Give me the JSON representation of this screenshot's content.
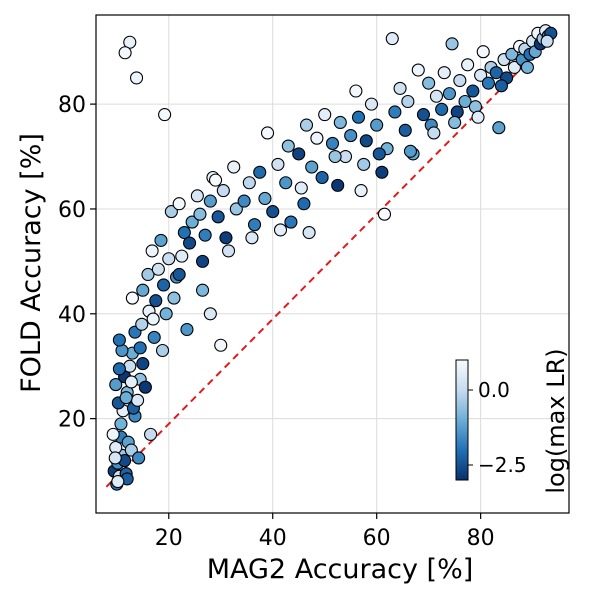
{
  "chart_data": {
    "type": "scatter",
    "title": "",
    "xlabel": "MAG2 Accuracy [%]",
    "ylabel": "FOLD Accuracy [%]",
    "xlim": [
      6,
      97
    ],
    "ylim": [
      2,
      97
    ],
    "xticks": [
      20,
      40,
      60,
      80
    ],
    "yticks": [
      20,
      40,
      60,
      80
    ],
    "x_tick_labels": [
      "20",
      "40",
      "60",
      "80"
    ],
    "y_tick_labels": [
      "20",
      "40",
      "60",
      "80"
    ],
    "grid": true,
    "reference_line": {
      "x": [
        8,
        94
      ],
      "y": [
        7,
        93
      ],
      "style": "dashed",
      "color": "#e31a1c"
    },
    "colorbar": {
      "label": "log(max LR)",
      "colormap": "Blues_r",
      "range": [
        -3,
        1
      ],
      "ticks": [
        0.0,
        -2.5
      ],
      "tick_labels": [
        "0.0",
        "−2.5"
      ]
    },
    "colors": {
      "low": "#08306b",
      "high": "#f7fbff",
      "reference_line": "#e31a1c",
      "marker_edge": "#000000"
    },
    "points": [
      [
        12.5,
        91.8,
        0.7
      ],
      [
        11.6,
        89.8,
        0.9
      ],
      [
        13.8,
        85.0,
        0.8
      ],
      [
        19.2,
        78.0,
        0.9
      ],
      [
        9.5,
        10.0,
        -2.8
      ],
      [
        10.2,
        11.5,
        -1.5
      ],
      [
        11.0,
        13.0,
        -0.5
      ],
      [
        9.8,
        14.5,
        0.5
      ],
      [
        10.5,
        9.0,
        0.2
      ],
      [
        11.8,
        9.5,
        -2.2
      ],
      [
        10.8,
        16.5,
        -1.8
      ],
      [
        9.3,
        17.0,
        0.8
      ],
      [
        12.2,
        15.5,
        -1.2
      ],
      [
        10.0,
        7.5,
        -2.0
      ],
      [
        11.5,
        12.0,
        -2.6
      ],
      [
        9.7,
        12.5,
        0.3
      ],
      [
        10.8,
        19.0,
        -0.9
      ],
      [
        12.8,
        14.0,
        -0.3
      ],
      [
        11.2,
        21.5,
        0.6
      ],
      [
        10.3,
        23.0,
        -2.4
      ],
      [
        12.0,
        25.0,
        -0.8
      ],
      [
        13.5,
        20.5,
        -1.6
      ],
      [
        9.8,
        26.5,
        -1.3
      ],
      [
        11.5,
        28.0,
        -2.9
      ],
      [
        12.5,
        30.0,
        0.1
      ],
      [
        10.5,
        29.5,
        -2.1
      ],
      [
        13.0,
        32.5,
        -1.0
      ],
      [
        14.5,
        27.5,
        -0.6
      ],
      [
        11.0,
        33.0,
        -1.4
      ],
      [
        15.0,
        30.5,
        -2.7
      ],
      [
        13.2,
        22.0,
        -2.3
      ],
      [
        14.0,
        23.5,
        0.4
      ],
      [
        13.5,
        36.5,
        -1.9
      ],
      [
        14.8,
        38.0,
        -0.2
      ],
      [
        16.2,
        40.5,
        0.7
      ],
      [
        15.0,
        44.5,
        -1.1
      ],
      [
        17.5,
        42.5,
        -2.5
      ],
      [
        16.0,
        47.5,
        -0.4
      ],
      [
        18.0,
        48.5,
        0.2
      ],
      [
        17.2,
        35.5,
        -1.7
      ],
      [
        19.5,
        40.0,
        -0.9
      ],
      [
        16.8,
        52.0,
        0.8
      ],
      [
        18.5,
        54.0,
        -1.2
      ],
      [
        20.5,
        59.5,
        -0.3
      ],
      [
        19.0,
        45.5,
        -2.2
      ],
      [
        21.5,
        47.0,
        -1.5
      ],
      [
        22.5,
        51.0,
        0.5
      ],
      [
        23.0,
        55.5,
        -2.0
      ],
      [
        24.5,
        57.5,
        -1.0
      ],
      [
        22.0,
        61.0,
        0.9
      ],
      [
        25.5,
        62.5,
        0.3
      ],
      [
        24.0,
        53.5,
        -2.6
      ],
      [
        26.0,
        59.0,
        -0.7
      ],
      [
        27.0,
        55.0,
        -1.8
      ],
      [
        28.5,
        66.0,
        0.6
      ],
      [
        28.0,
        61.5,
        -1.3
      ],
      [
        29.5,
        58.5,
        -2.4
      ],
      [
        30.5,
        63.5,
        0.0
      ],
      [
        31.0,
        54.5,
        -2.8
      ],
      [
        29.0,
        65.5,
        1.0
      ],
      [
        32.5,
        68.0,
        0.7
      ],
      [
        33.0,
        60.0,
        -0.5
      ],
      [
        34.5,
        61.5,
        -1.6
      ],
      [
        35.5,
        65.0,
        -0.1
      ],
      [
        36.0,
        54.5,
        0.4
      ],
      [
        37.5,
        67.0,
        -2.1
      ],
      [
        38.5,
        62.0,
        -1.1
      ],
      [
        39.0,
        74.5,
        0.9
      ],
      [
        40.0,
        59.5,
        -2.5
      ],
      [
        41.0,
        68.5,
        0.2
      ],
      [
        42.5,
        65.0,
        -1.4
      ],
      [
        43.0,
        72.0,
        -0.6
      ],
      [
        43.5,
        57.5,
        -1.9
      ],
      [
        45.0,
        70.5,
        -2.7
      ],
      [
        45.5,
        64.0,
        0.5
      ],
      [
        46.5,
        76.0,
        -0.3
      ],
      [
        47.5,
        68.0,
        -1.2
      ],
      [
        47.0,
        55.5,
        0.3
      ],
      [
        48.5,
        73.5,
        0.8
      ],
      [
        49.5,
        66.0,
        -2.2
      ],
      [
        50.0,
        78.0,
        0.6
      ],
      [
        51.5,
        72.5,
        -1.7
      ],
      [
        52.5,
        64.5,
        -2.9
      ],
      [
        53.0,
        76.5,
        -0.8
      ],
      [
        54.0,
        70.0,
        0.1
      ],
      [
        55.0,
        74.0,
        -1.5
      ],
      [
        56.0,
        82.5,
        0.9
      ],
      [
        56.5,
        77.5,
        -2.0
      ],
      [
        57.5,
        68.5,
        -0.4
      ],
      [
        58.0,
        73.0,
        -2.6
      ],
      [
        59.0,
        80.0,
        0.4
      ],
      [
        60.0,
        76.0,
        -1.3
      ],
      [
        61.0,
        67.0,
        -2.8
      ],
      [
        62.0,
        71.5,
        -0.9
      ],
      [
        61.5,
        59.0,
        1.0
      ],
      [
        63.0,
        92.5,
        0.5
      ],
      [
        63.5,
        78.5,
        -1.8
      ],
      [
        64.5,
        83.0,
        0.2
      ],
      [
        65.5,
        75.0,
        -2.3
      ],
      [
        66.0,
        80.5,
        -0.2
      ],
      [
        67.0,
        70.5,
        -1.1
      ],
      [
        68.0,
        86.5,
        0.8
      ],
      [
        69.0,
        78.0,
        -2.5
      ],
      [
        70.0,
        84.0,
        -0.7
      ],
      [
        70.5,
        76.0,
        -1.6
      ],
      [
        71.5,
        81.5,
        0.3
      ],
      [
        72.5,
        79.0,
        -2.1
      ],
      [
        73.0,
        86.0,
        0.6
      ],
      [
        74.0,
        82.0,
        -1.4
      ],
      [
        74.5,
        91.5,
        -0.5
      ],
      [
        75.5,
        78.5,
        -2.7
      ],
      [
        76.0,
        84.5,
        0.0
      ],
      [
        77.0,
        80.5,
        -1.0
      ],
      [
        77.5,
        87.5,
        0.7
      ],
      [
        78.5,
        82.5,
        -2.4
      ],
      [
        79.0,
        79.5,
        -0.6
      ],
      [
        80.0,
        85.5,
        0.4
      ],
      [
        80.5,
        90.0,
        0.9
      ],
      [
        81.5,
        84.0,
        -1.9
      ],
      [
        82.0,
        87.0,
        -0.3
      ],
      [
        83.0,
        86.0,
        -2.2
      ],
      [
        83.5,
        75.5,
        -1.2
      ],
      [
        84.5,
        88.5,
        0.2
      ],
      [
        85.0,
        85.0,
        -2.6
      ],
      [
        86.0,
        89.5,
        -0.8
      ],
      [
        86.5,
        87.0,
        0.5
      ],
      [
        87.5,
        91.0,
        1.0
      ],
      [
        88.0,
        88.5,
        -1.5
      ],
      [
        88.5,
        90.5,
        -0.1
      ],
      [
        89.5,
        89.5,
        -2.0
      ],
      [
        90.0,
        92.0,
        0.3
      ],
      [
        90.5,
        90.0,
        -1.1
      ],
      [
        91.0,
        93.5,
        0.8
      ],
      [
        91.5,
        91.5,
        -2.9
      ],
      [
        92.0,
        92.5,
        -0.4
      ],
      [
        92.5,
        94.0,
        0.6
      ],
      [
        93.0,
        93.0,
        -1.7
      ],
      [
        93.5,
        93.5,
        -2.5
      ],
      [
        92.8,
        92.0,
        0.1
      ],
      [
        89.0,
        87.0,
        -0.9
      ],
      [
        84.0,
        83.5,
        -2.3
      ],
      [
        79.5,
        77.5,
        0.5
      ],
      [
        75.0,
        76.5,
        -0.7
      ],
      [
        71.0,
        74.5,
        0.0
      ],
      [
        66.5,
        71.0,
        -1.3
      ],
      [
        60.5,
        70.5,
        -2.4
      ],
      [
        57.0,
        63.5,
        0.7
      ],
      [
        52.0,
        70.0,
        -0.5
      ],
      [
        46.0,
        61.0,
        -2.1
      ],
      [
        41.5,
        56.0,
        0.6
      ],
      [
        36.5,
        57.0,
        -1.8
      ],
      [
        31.5,
        52.0,
        0.2
      ],
      [
        26.5,
        50.0,
        -2.7
      ],
      [
        21.0,
        43.0,
        -0.6
      ],
      [
        17.0,
        39.0,
        0.8
      ],
      [
        14.5,
        33.5,
        -2.0
      ],
      [
        12.8,
        27.0,
        0.6
      ],
      [
        11.8,
        24.0,
        -1.0
      ],
      [
        15.5,
        26.0,
        -2.9
      ],
      [
        18.8,
        33.0,
        -0.3
      ],
      [
        23.5,
        37.0,
        -1.4
      ],
      [
        28.0,
        40.0,
        0.4
      ],
      [
        30.0,
        34.0,
        0.9
      ],
      [
        26.5,
        44.5,
        -0.8
      ],
      [
        22.0,
        47.5,
        -2.4
      ],
      [
        20.0,
        50.5,
        0.1
      ],
      [
        13.0,
        43.0,
        1.0
      ],
      [
        10.5,
        35.0,
        -2.0
      ],
      [
        16.5,
        17.0,
        0.0
      ],
      [
        14.2,
        12.5,
        -1.6
      ],
      [
        12.0,
        8.5,
        -2.3
      ],
      [
        10.2,
        8.0,
        0.5
      ]
    ]
  }
}
